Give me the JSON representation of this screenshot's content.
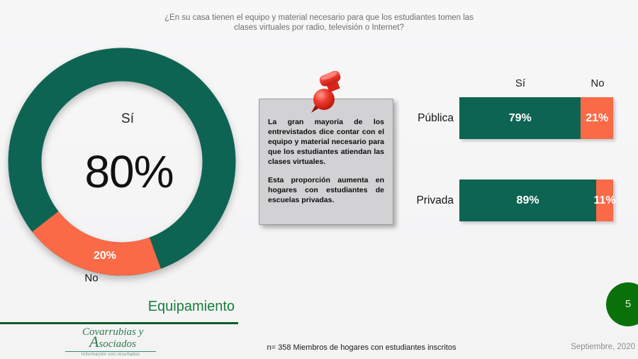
{
  "slide": {
    "title": "¿En su casa tienen el equipo y material necesario para que los estudiantes tomen las clases virtuales por radio, televisión o Internet?"
  },
  "donut": {
    "label_yes": "Sí",
    "center_value": "80%",
    "value_no": "20%",
    "label_no": "No"
  },
  "note_box": {
    "paragraph1": "La gran mayoría de los entrevistados dice contar con el equipo y material necesario para que los estudiantes atiendan las clases virtuales.",
    "paragraph2": "Esta proporción aumenta en hogares con estudiantes de escuelas privadas."
  },
  "bars": {
    "header_yes": "Sí",
    "header_no": "No",
    "rows": [
      {
        "label": "Pública",
        "yes_label": "79%",
        "no_label": "21%"
      },
      {
        "label": "Privada",
        "yes_label": "89%",
        "no_label": "11%"
      }
    ]
  },
  "footer": {
    "section_label": "Equipamiento",
    "sample_note": "n= 358 Miembros de hogares con estudiantes inscritos",
    "date": "Septiembre, 2020",
    "page_number": "5"
  },
  "logo": {
    "line1": "Covarrubias y",
    "line2_initial": "A",
    "line2_rest": "sociados",
    "tagline": "Información con resultados"
  },
  "colors": {
    "green": "#0E6453",
    "orange": "#FA6A47",
    "accent_green": "#157F3C",
    "underline_green": "#0C5A2B",
    "page_circle_green": "#0A710A",
    "title_gray": "#6F6F6F"
  },
  "chart_data": [
    {
      "type": "pie",
      "subtype": "donut",
      "title": "¿En su casa tienen el equipo y material necesario para que los estudiantes tomen las clases virtuales por radio, televisión o Internet?",
      "labels": [
        "Sí",
        "No"
      ],
      "values": [
        80,
        20
      ],
      "colors": [
        "#0E6453",
        "#FA6A47"
      ],
      "center_label": "80%",
      "legend_position": "none"
    },
    {
      "type": "bar",
      "orientation": "horizontal",
      "stacked": true,
      "categories": [
        "Pública",
        "Privada"
      ],
      "series": [
        {
          "name": "Sí",
          "values": [
            79,
            89
          ],
          "color": "#0E6453"
        },
        {
          "name": "No",
          "values": [
            21,
            11
          ],
          "color": "#FA6A47"
        }
      ],
      "unit": "%",
      "xlim": [
        0,
        100
      ],
      "grid": false,
      "legend_position": "top"
    }
  ]
}
